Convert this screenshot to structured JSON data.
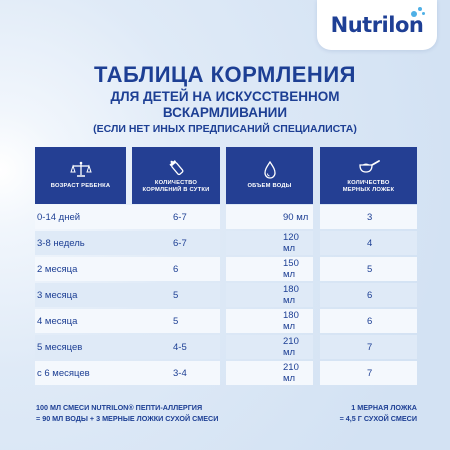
{
  "brand": {
    "name": "Nutrilon"
  },
  "title": "ТАБЛИЦА КОРМЛЕНИЯ",
  "subtitle_line1": "ДЛЯ ДЕТЕЙ НА ИСКУССТВЕННОМ",
  "subtitle_line2": "ВСКАРМЛИВАНИИ",
  "note": "(ЕСЛИ НЕТ ИНЫХ ПРЕДПИСАНИЙ СПЕЦИАЛИСТА)",
  "table": {
    "headers": [
      {
        "label": "ВОЗРАСТ РЕБЕНКА",
        "icon": "scale-icon"
      },
      {
        "label": "КОЛИЧЕСТВО\nКОРМЛЕНИЙ В СУТКИ",
        "icon": "bottle-icon"
      },
      {
        "label": "ОБЪЕМ ВОДЫ",
        "icon": "water-drop-icon"
      },
      {
        "label": "КОЛИЧЕСТВО\nМЕРНЫХ ЛОЖЕК",
        "icon": "measuring-spoon-icon"
      }
    ],
    "rows": [
      [
        "0-14 дней",
        "6-7",
        "90 мл",
        "3"
      ],
      [
        "3-8 недель",
        "6-7",
        "120 мл",
        "4"
      ],
      [
        "2 месяца",
        "6",
        "150 мл",
        "5"
      ],
      [
        "3 месяца",
        "5",
        "180 мл",
        "6"
      ],
      [
        "4 месяца",
        "5",
        "180 мл",
        "6"
      ],
      [
        "5 месяцев",
        "4-5",
        "210 мл",
        "7"
      ],
      [
        "с 6 месяцев",
        "3-4",
        "210 мл",
        "7"
      ]
    ]
  },
  "footnote_left_line1": "100 МЛ СМЕСИ NUTRILON® ПЕПТИ-АЛЛЕРГИЯ",
  "footnote_left_line2": "= 90 МЛ ВОДЫ + 3 МЕРНЫЕ ЛОЖКИ СУХОЙ СМЕСИ",
  "footnote_right_line1": "1 МЕРНАЯ ЛОЖКА",
  "footnote_right_line2": "= 4,5 Г СУХОЙ СМЕСИ",
  "colors": {
    "header_bg": "#243f93",
    "text": "#1d3f94",
    "row_light": "#f4f8fd",
    "row_dark": "#dfeaf7",
    "logo_dot": "#4fb0e6"
  }
}
